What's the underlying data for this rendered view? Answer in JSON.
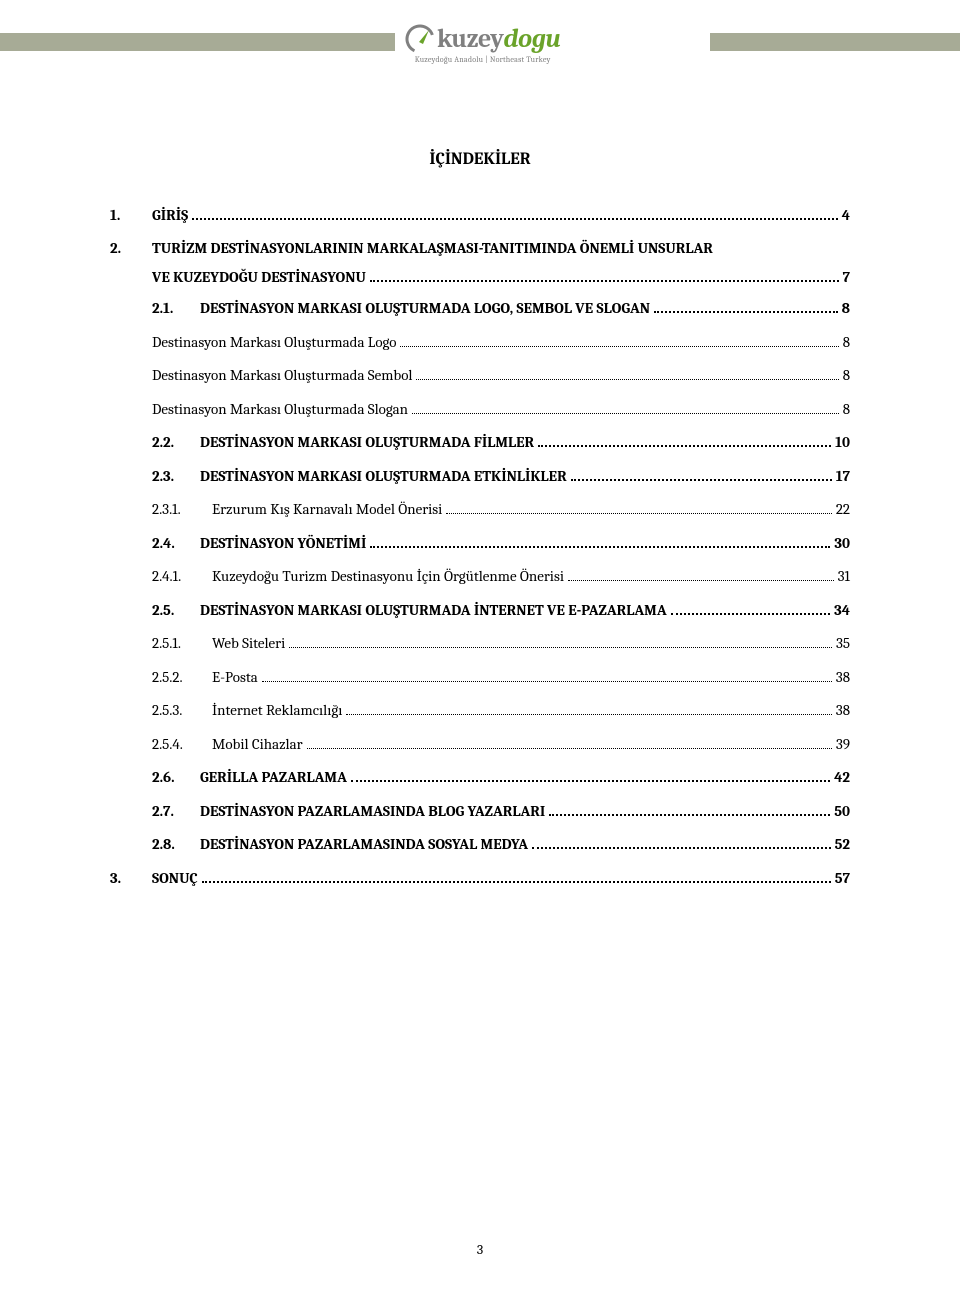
{
  "header": {
    "bar_color": "#a7ab96",
    "logo_gray": "#808080",
    "logo_green": "#6aa32a",
    "logo_text_1": "kuzey",
    "logo_text_2": "dogu",
    "logo_sub": "Kuzeydoğu Anadolu | Northeast Turkey"
  },
  "toc": {
    "title": "İÇİNDEKİLER",
    "entries": [
      {
        "lvl": "lvl1",
        "num": "1.",
        "label": "GİRİŞ",
        "page": "4",
        "bold": true
      },
      {
        "type": "twoline",
        "num": "2.",
        "l1": "TURİZM DESTİNASYONLARININ MARKALAŞMASI-TANITIMINDA ÖNEMLİ UNSURLAR",
        "l2": "VE KUZEYDOĞU DESTİNASYONU",
        "page": "7"
      },
      {
        "lvl": "lvl2",
        "num": "2.1.",
        "label": "DESTİNASYON MARKASI OLUŞTURMADA LOGO, SEMBOL VE SLOGAN",
        "page": "8",
        "bold": true
      },
      {
        "lvl": "lvl2b",
        "num": "",
        "label": "Destinasyon Markası Oluşturmada Logo",
        "page": "8",
        "bold": false
      },
      {
        "lvl": "lvl2b",
        "num": "",
        "label": "Destinasyon Markası Oluşturmada Sembol",
        "page": "8",
        "bold": false
      },
      {
        "lvl": "lvl2b",
        "num": "",
        "label": "Destinasyon Markası Oluşturmada Slogan",
        "page": "8",
        "bold": false
      },
      {
        "lvl": "lvl2",
        "num": "2.2.",
        "label": "DESTİNASYON MARKASI OLUŞTURMADA FİLMLER",
        "page": "10",
        "bold": true
      },
      {
        "lvl": "lvl2",
        "num": "2.3.",
        "label": "DESTİNASYON MARKASI OLUŞTURMADA ETKİNLİKLER",
        "page": "17",
        "bold": true
      },
      {
        "lvl": "lvl3",
        "num": "2.3.1.",
        "label": "Erzurum Kış Karnavalı Model Önerisi",
        "page": "22",
        "bold": false
      },
      {
        "lvl": "lvl2",
        "num": "2.4.",
        "label": "DESTİNASYON YÖNETİMİ",
        "page": "30",
        "bold": true
      },
      {
        "lvl": "lvl3",
        "num": "2.4.1.",
        "label": "Kuzeydoğu Turizm Destinasyonu İçin Örgütlenme Önerisi",
        "page": "31",
        "bold": false
      },
      {
        "lvl": "lvl2",
        "num": "2.5.",
        "label": "DESTİNASYON MARKASI OLUŞTURMADA İNTERNET VE E-PAZARLAMA",
        "page": "34",
        "bold": true
      },
      {
        "lvl": "lvl3",
        "num": "2.5.1.",
        "label": "Web Siteleri",
        "page": "35",
        "bold": false
      },
      {
        "lvl": "lvl3",
        "num": "2.5.2.",
        "label": "E-Posta",
        "page": "38",
        "bold": false
      },
      {
        "lvl": "lvl3",
        "num": "2.5.3.",
        "label": "İnternet Reklamcılığı",
        "page": "38",
        "bold": false
      },
      {
        "lvl": "lvl3",
        "num": "2.5.4.",
        "label": "Mobil Cihazlar",
        "page": "39",
        "bold": false
      },
      {
        "lvl": "lvl2",
        "num": "2.6.",
        "label": "GERİLLA PAZARLAMA",
        "page": "42",
        "bold": true
      },
      {
        "lvl": "lvl2",
        "num": "2.7.",
        "label": "DESTİNASYON PAZARLAMASINDA BLOG YAZARLARI",
        "page": "50",
        "bold": true
      },
      {
        "lvl": "lvl2",
        "num": "2.8.",
        "label": "DESTİNASYON PAZARLAMASINDA SOSYAL MEDYA",
        "page": "52",
        "bold": true
      },
      {
        "lvl": "lvl1",
        "num": "3.",
        "label": "SONUÇ",
        "page": "57",
        "bold": true
      }
    ]
  },
  "page_number": "3"
}
